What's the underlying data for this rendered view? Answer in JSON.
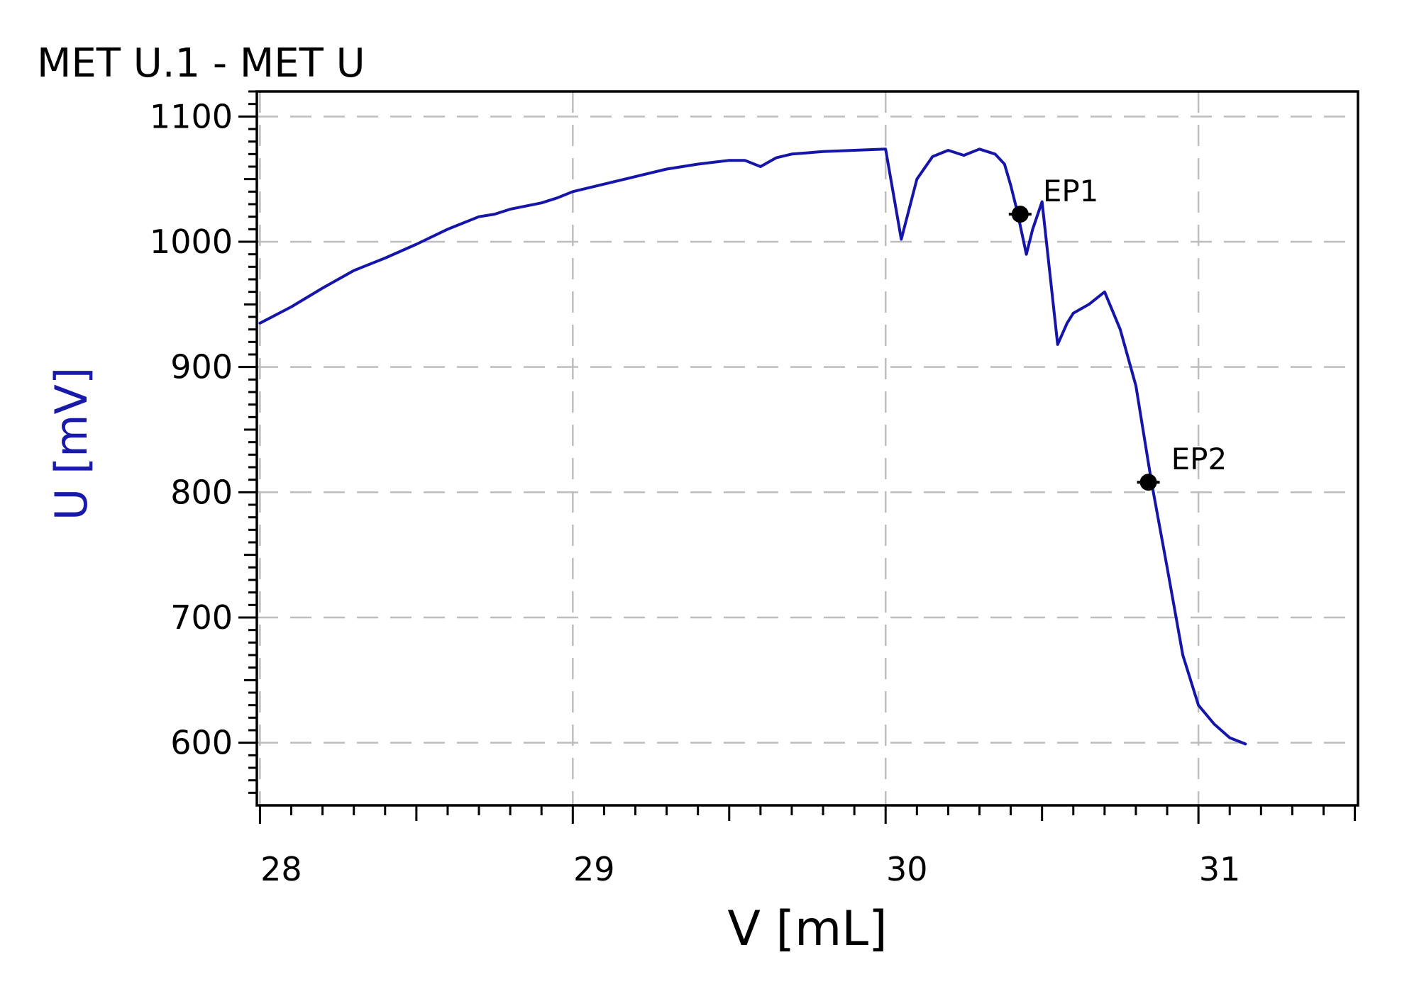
{
  "chart_data": {
    "type": "line",
    "title": "MET U.1 - MET U",
    "xlabel": "V [mL]",
    "ylabel": "U [mV]",
    "xlim": [
      27.99,
      31.51
    ],
    "ylim": [
      550,
      1120
    ],
    "xticks": [
      28,
      29,
      30,
      31
    ],
    "xtick_labels": [
      "28",
      "29",
      "30",
      "31"
    ],
    "yticks": [
      600,
      700,
      800,
      900,
      1000,
      1100
    ],
    "ytick_labels": [
      "600",
      "700",
      "800",
      "900",
      "1000",
      "1100"
    ],
    "grid": true,
    "legend": "none",
    "colors": {
      "series": "#1515aa",
      "ylabel": "#1a1aaa",
      "axis": "#000000",
      "grid": "#bdbdbd",
      "marker": "#000000"
    },
    "series": [
      {
        "x": [
          28.0,
          28.1,
          28.2,
          28.3,
          28.4,
          28.5,
          28.6,
          28.7,
          28.75,
          28.8,
          28.9,
          28.95,
          29.0,
          29.1,
          29.2,
          29.3,
          29.4,
          29.5,
          29.55,
          29.6,
          29.65,
          29.7,
          29.8,
          29.9,
          30.0,
          30.05,
          30.1,
          30.15,
          30.2,
          30.25,
          30.3,
          30.35,
          30.38,
          30.4,
          30.42,
          30.45,
          30.47,
          30.5,
          30.55,
          30.58,
          30.6,
          30.65,
          30.7,
          30.75,
          30.8,
          30.85,
          30.9,
          30.95,
          31.0,
          31.05,
          31.1,
          31.15
        ],
        "y": [
          935,
          948,
          963,
          977,
          987,
          998,
          1010,
          1020,
          1022,
          1026,
          1031,
          1035,
          1040,
          1046,
          1052,
          1058,
          1062,
          1065,
          1065,
          1060,
          1067,
          1070,
          1072,
          1073,
          1074,
          1002,
          1050,
          1068,
          1073,
          1069,
          1074,
          1070,
          1062,
          1045,
          1025,
          990,
          1010,
          1032,
          918,
          935,
          943,
          950,
          960,
          930,
          885,
          808,
          740,
          670,
          630,
          615,
          604,
          599
        ]
      }
    ],
    "annotations": [
      {
        "label": "EP1",
        "x": 30.43,
        "y": 1022
      },
      {
        "label": "EP2",
        "x": 30.84,
        "y": 808
      }
    ]
  }
}
